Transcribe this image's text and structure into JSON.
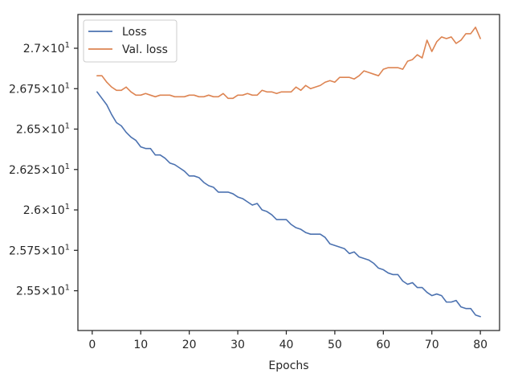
{
  "chart_data": {
    "type": "line",
    "title": "",
    "xlabel": "Epochs",
    "ylabel": "",
    "xlim": [
      -2.95,
      83.95
    ],
    "ylim": [
      25.254,
      27.209
    ],
    "grid": false,
    "legend_position": "top-left",
    "x_ticks": [
      0,
      10,
      20,
      30,
      40,
      50,
      60,
      70,
      80
    ],
    "x_tick_labels": [
      "0",
      "10",
      "20",
      "30",
      "40",
      "50",
      "60",
      "70",
      "80"
    ],
    "y_ticks": [
      25.5,
      25.75,
      26.0,
      26.25,
      26.5,
      26.75,
      27.0
    ],
    "y_tick_labels": [
      {
        "mantissa": "2.55",
        "base": "10",
        "exp": "1"
      },
      {
        "mantissa": "2.575",
        "base": "10",
        "exp": "1"
      },
      {
        "mantissa": "2.6",
        "base": "10",
        "exp": "1"
      },
      {
        "mantissa": "2.625",
        "base": "10",
        "exp": "1"
      },
      {
        "mantissa": "2.65",
        "base": "10",
        "exp": "1"
      },
      {
        "mantissa": "2.675",
        "base": "10",
        "exp": "1"
      },
      {
        "mantissa": "2.7",
        "base": "10",
        "exp": "1"
      }
    ],
    "x": [
      1,
      2,
      3,
      4,
      5,
      6,
      7,
      8,
      9,
      10,
      11,
      12,
      13,
      14,
      15,
      16,
      17,
      18,
      19,
      20,
      21,
      22,
      23,
      24,
      25,
      26,
      27,
      28,
      29,
      30,
      31,
      32,
      33,
      34,
      35,
      36,
      37,
      38,
      39,
      40,
      41,
      42,
      43,
      44,
      45,
      46,
      47,
      48,
      49,
      50,
      51,
      52,
      53,
      54,
      55,
      56,
      57,
      58,
      59,
      60,
      61,
      62,
      63,
      64,
      65,
      66,
      67,
      68,
      69,
      70,
      71,
      72,
      73,
      74,
      75,
      76,
      77,
      78,
      79,
      80
    ],
    "series": [
      {
        "name": "Loss",
        "color": "#4c72b0",
        "values": [
          26.73,
          26.69,
          26.65,
          26.59,
          26.54,
          26.52,
          26.48,
          26.45,
          26.43,
          26.39,
          26.38,
          26.38,
          26.34,
          26.34,
          26.32,
          26.29,
          26.28,
          26.26,
          26.24,
          26.21,
          26.21,
          26.2,
          26.17,
          26.15,
          26.14,
          26.11,
          26.11,
          26.11,
          26.1,
          26.08,
          26.07,
          26.05,
          26.03,
          26.04,
          26.0,
          25.99,
          25.97,
          25.94,
          25.94,
          25.94,
          25.91,
          25.89,
          25.88,
          25.86,
          25.85,
          25.85,
          25.85,
          25.83,
          25.79,
          25.78,
          25.77,
          25.76,
          25.73,
          25.74,
          25.71,
          25.7,
          25.69,
          25.67,
          25.64,
          25.63,
          25.61,
          25.6,
          25.6,
          25.56,
          25.54,
          25.55,
          25.52,
          25.52,
          25.49,
          25.47,
          25.48,
          25.47,
          25.43,
          25.43,
          25.44,
          25.4,
          25.39,
          25.39,
          25.35,
          25.34
        ]
      },
      {
        "name": "Val. loss",
        "color": "#dd8452",
        "values": [
          26.83,
          26.83,
          26.79,
          26.76,
          26.74,
          26.74,
          26.76,
          26.73,
          26.71,
          26.71,
          26.72,
          26.71,
          26.7,
          26.71,
          26.71,
          26.71,
          26.7,
          26.7,
          26.7,
          26.71,
          26.71,
          26.7,
          26.7,
          26.71,
          26.7,
          26.7,
          26.72,
          26.69,
          26.69,
          26.71,
          26.71,
          26.72,
          26.71,
          26.71,
          26.74,
          26.73,
          26.73,
          26.72,
          26.73,
          26.73,
          26.73,
          26.76,
          26.74,
          26.77,
          26.75,
          26.76,
          26.77,
          26.79,
          26.8,
          26.79,
          26.82,
          26.82,
          26.82,
          26.81,
          26.83,
          26.86,
          26.85,
          26.84,
          26.83,
          26.87,
          26.88,
          26.88,
          26.88,
          26.87,
          26.92,
          26.93,
          26.96,
          26.94,
          27.05,
          26.98,
          27.04,
          27.07,
          27.06,
          27.07,
          27.03,
          27.05,
          27.09,
          27.09,
          27.13,
          27.06
        ]
      }
    ]
  }
}
